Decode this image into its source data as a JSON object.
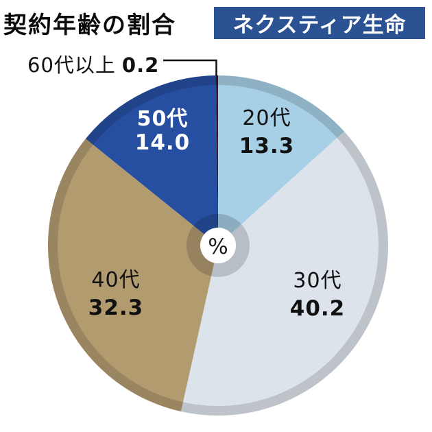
{
  "page": {
    "background": "#ffffff"
  },
  "header": {
    "title": "契約年齢の割合",
    "badge": "ネクスティア生命"
  },
  "chart_data": {
    "type": "pie",
    "title": "契約年齢の割合",
    "source_badge": "ネクスティア生命",
    "unit": "%",
    "center_label": "%",
    "donut_hole": true,
    "direction": "clockwise",
    "start_angle_deg": 0,
    "slices": [
      {
        "label": "20代",
        "value": 13.3,
        "display": "13.3",
        "color": "#a7cfe5",
        "text_color": "#111111"
      },
      {
        "label": "30代",
        "value": 40.2,
        "display": "40.2",
        "color": "#dce3eb",
        "text_color": "#111111"
      },
      {
        "label": "40代",
        "value": 32.3,
        "display": "32.3",
        "color": "#b39b70",
        "text_color": "#111111"
      },
      {
        "label": "50代",
        "value": 14.0,
        "display": "14.0",
        "color": "#274fa1",
        "text_color": "#ffffff"
      },
      {
        "label": "60代以上",
        "value": 0.2,
        "display": "0.2",
        "color": "#4b1020",
        "text_color": "#111111"
      }
    ],
    "callout": {
      "label": "60代以上",
      "value": "0.2"
    },
    "colors": {
      "badge_bg": "#2b5394",
      "badge_text": "#ffffff",
      "rim_shade": "rgba(0,0,0,0.14)",
      "inner_ring_shade": "rgba(0,0,0,0.16)",
      "leader_line": "#111111",
      "hole_fill": "#ffffff"
    }
  }
}
